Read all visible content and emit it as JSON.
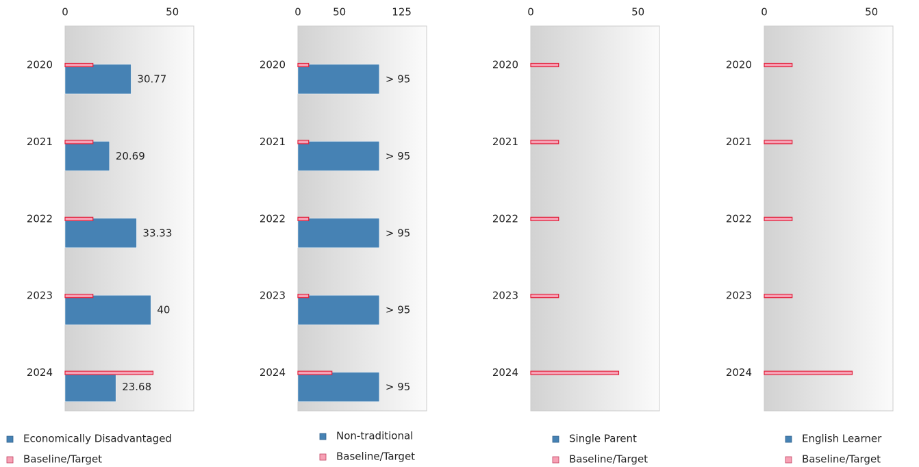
{
  "chart_data": [
    {
      "type": "bar",
      "orientation": "horizontal",
      "categories": [
        "2020",
        "2021",
        "2022",
        "2023",
        "2024"
      ],
      "series": [
        {
          "name": "Economically Disadvantaged",
          "color": "#4682b4",
          "values": [
            30.77,
            20.69,
            33.33,
            40,
            23.68
          ]
        },
        {
          "name": "Baseline/Target",
          "color": "#f7a1b5",
          "values": [
            13,
            13,
            13,
            13,
            41
          ]
        }
      ],
      "xlim": [
        0,
        60
      ],
      "xticks": [
        0,
        50
      ]
    },
    {
      "type": "bar",
      "orientation": "horizontal",
      "categories": [
        "2020",
        "2021",
        "2022",
        "2023",
        "2024"
      ],
      "series": [
        {
          "name": "Non-traditional",
          "color": "#4682b4",
          "values": [
            98,
            98,
            98,
            98,
            98
          ],
          "value_labels": [
            "> 95",
            "> 95",
            "> 95",
            "> 95",
            "> 95"
          ]
        },
        {
          "name": "Baseline/Target",
          "color": "#f7a1b5",
          "values": [
            13,
            13,
            13,
            13,
            41
          ]
        }
      ],
      "xlim": [
        0,
        155
      ],
      "xticks": [
        0,
        50,
        125
      ]
    },
    {
      "type": "bar",
      "orientation": "horizontal",
      "categories": [
        "2020",
        "2021",
        "2022",
        "2023",
        "2024"
      ],
      "series": [
        {
          "name": "Single Parent",
          "color": "#4682b4",
          "values": [
            null,
            null,
            null,
            null,
            null
          ]
        },
        {
          "name": "Baseline/Target",
          "color": "#f7a1b5",
          "values": [
            13,
            13,
            13,
            13,
            41
          ]
        }
      ],
      "xlim": [
        0,
        60
      ],
      "xticks": [
        0,
        50
      ]
    },
    {
      "type": "bar",
      "orientation": "horizontal",
      "categories": [
        "2020",
        "2021",
        "2022",
        "2023",
        "2024"
      ],
      "series": [
        {
          "name": "English Learner",
          "color": "#4682b4",
          "values": [
            null,
            null,
            null,
            null,
            null
          ]
        },
        {
          "name": "Baseline/Target",
          "color": "#f7a1b5",
          "values": [
            13,
            13,
            13,
            13,
            41
          ]
        }
      ],
      "xlim": [
        0,
        60
      ],
      "xticks": [
        0,
        50
      ]
    }
  ]
}
